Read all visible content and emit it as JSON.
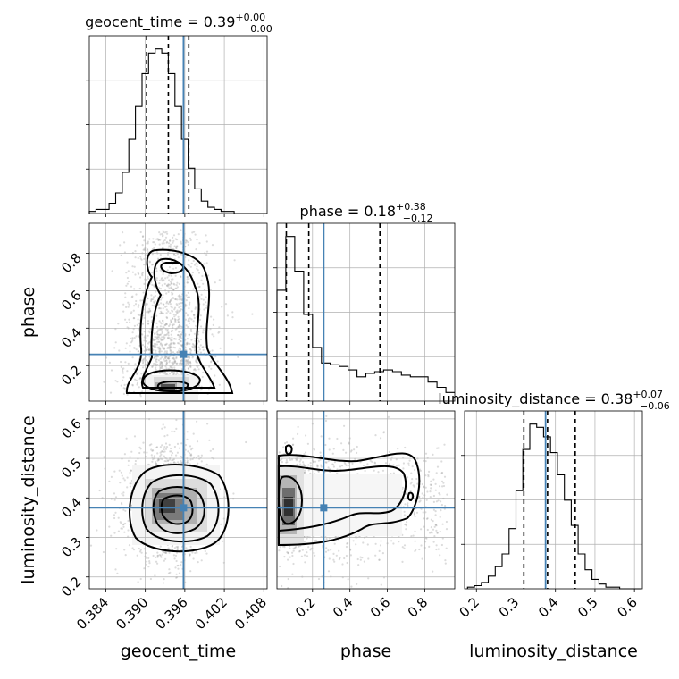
{
  "chart_data": {
    "type": "corner",
    "parameters": [
      {
        "name": "geocent_time",
        "label": "geocent_time",
        "range": [
          0.3815,
          0.4085
        ],
        "ticks": [
          "0.384",
          "0.390",
          "0.396",
          "0.402",
          "0.408"
        ],
        "tick_values": [
          0.384,
          0.39,
          0.396,
          0.402,
          0.408
        ],
        "title_main": "geocent_time = 0.39",
        "title_sup": "+0.00",
        "title_sub": "−0.00",
        "median": 0.3935,
        "q16": 0.3902,
        "q84": 0.3966,
        "truth": 0.3958
      },
      {
        "name": "phase",
        "label": "phase",
        "range": [
          0.01,
          0.96
        ],
        "ticks": [
          "0.2",
          "0.4",
          "0.6",
          "0.8"
        ],
        "tick_values": [
          0.2,
          0.4,
          0.6,
          0.8
        ],
        "title_main": "phase = 0.18",
        "title_sup": "+0.38",
        "title_sub": "−0.12",
        "median": 0.18,
        "q16": 0.06,
        "q84": 0.56,
        "truth": 0.26
      },
      {
        "name": "luminosity_distance",
        "label": "luminosity_distance",
        "range": [
          0.17,
          0.62
        ],
        "ticks": [
          "0.2",
          "0.3",
          "0.4",
          "0.5",
          "0.6"
        ],
        "tick_values": [
          0.2,
          0.3,
          0.4,
          0.5,
          0.6
        ],
        "title_main": "luminosity_distance = 0.38",
        "title_sup": "+0.07",
        "title_sub": "−0.06",
        "median": 0.38,
        "q16": 0.32,
        "q84": 0.45,
        "truth": 0.375
      }
    ],
    "histograms": [
      {
        "param": "geocent_time",
        "bin_width": 0.001,
        "start": 0.3815,
        "counts": [
          1,
          2,
          2,
          5,
          10,
          20,
          36,
          52,
          68,
          78,
          80,
          78,
          68,
          52,
          36,
          22,
          12,
          6,
          3,
          2,
          1,
          1,
          0,
          0,
          0,
          0,
          0
        ]
      },
      {
        "param": "phase",
        "bin_width": 0.0475,
        "start": 0.01,
        "counts": [
          64,
          95,
          75,
          50,
          31,
          22,
          21,
          20,
          18,
          14,
          16,
          17,
          18,
          17,
          15,
          14,
          14,
          11,
          8,
          5
        ]
      },
      {
        "param": "luminosity_distance",
        "bin_width": 0.0175,
        "start": 0.1775,
        "counts": [
          1,
          2,
          4,
          8,
          14,
          22,
          38,
          62,
          88,
          104,
          102,
          96,
          86,
          72,
          56,
          40,
          22,
          12,
          6,
          3,
          1,
          1,
          0,
          0,
          0
        ]
      }
    ],
    "density_2d": [
      {
        "x": "geocent_time",
        "y": "phase",
        "mean": [
          0.3935,
          0.22
        ],
        "sd": [
          0.0025,
          0.2
        ]
      },
      {
        "x": "geocent_time",
        "y": "luminosity_distance",
        "mean": [
          0.3935,
          0.385
        ],
        "sd": [
          0.0025,
          0.055
        ]
      },
      {
        "x": "phase",
        "y": "luminosity_distance",
        "mean": [
          0.22,
          0.385
        ],
        "sd": [
          0.2,
          0.055
        ]
      }
    ],
    "grid": true
  }
}
